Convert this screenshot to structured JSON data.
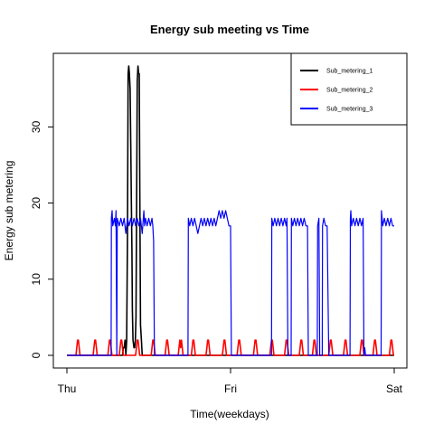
{
  "chart_data": {
    "type": "line",
    "title": "Energy sub meeting vs Time",
    "xlabel": "Time(weekdays)",
    "ylabel": "Energy sub metering",
    "x_unit": "day",
    "xlim": [
      0,
      2
    ],
    "ylim": [
      0,
      38
    ],
    "x_ticks": [
      {
        "value": 0,
        "label": "Thu"
      },
      {
        "value": 1,
        "label": "Fri"
      },
      {
        "value": 2,
        "label": "Sat"
      }
    ],
    "y_ticks": [
      0,
      10,
      20,
      30
    ],
    "grid": false,
    "legend_position": "top-right",
    "series": [
      {
        "name": "Sub_metering_1",
        "color": "#000000",
        "points": [
          [
            0,
            0
          ],
          [
            0.34,
            0
          ],
          [
            0.345,
            1
          ],
          [
            0.35,
            1
          ],
          [
            0.355,
            2
          ],
          [
            0.36,
            0
          ],
          [
            0.365,
            2
          ],
          [
            0.37,
            16
          ],
          [
            0.374,
            37
          ],
          [
            0.378,
            38
          ],
          [
            0.382,
            37
          ],
          [
            0.386,
            35
          ],
          [
            0.39,
            28
          ],
          [
            0.394,
            20
          ],
          [
            0.397,
            14
          ],
          [
            0.4,
            6
          ],
          [
            0.404,
            2
          ],
          [
            0.41,
            1
          ],
          [
            0.414,
            1
          ],
          [
            0.418,
            2
          ],
          [
            0.422,
            5
          ],
          [
            0.426,
            20
          ],
          [
            0.43,
            36
          ],
          [
            0.434,
            38
          ],
          [
            0.438,
            37
          ],
          [
            0.442,
            37
          ],
          [
            0.446,
            20
          ],
          [
            0.45,
            4
          ],
          [
            0.455,
            2
          ],
          [
            0.46,
            0
          ],
          [
            2,
            0
          ]
        ]
      },
      {
        "name": "Sub_metering_2",
        "color": "#ff0000",
        "points": [
          [
            0,
            0
          ],
          [
            0.055,
            0
          ],
          [
            0.06,
            1
          ],
          [
            0.065,
            2
          ],
          [
            0.07,
            2
          ],
          [
            0.075,
            1
          ],
          [
            0.08,
            0
          ],
          [
            0.16,
            0
          ],
          [
            0.165,
            1
          ],
          [
            0.17,
            2
          ],
          [
            0.175,
            2
          ],
          [
            0.18,
            1
          ],
          [
            0.185,
            0
          ],
          [
            0.25,
            0
          ],
          [
            0.255,
            1
          ],
          [
            0.26,
            2
          ],
          [
            0.265,
            2
          ],
          [
            0.27,
            1
          ],
          [
            0.275,
            0
          ],
          [
            0.32,
            0
          ],
          [
            0.325,
            1
          ],
          [
            0.33,
            2
          ],
          [
            0.335,
            2
          ],
          [
            0.34,
            1
          ],
          [
            0.345,
            0
          ],
          [
            0.42,
            0
          ],
          [
            0.425,
            1
          ],
          [
            0.43,
            2
          ],
          [
            0.435,
            2
          ],
          [
            0.44,
            1
          ],
          [
            0.445,
            0
          ],
          [
            0.515,
            0
          ],
          [
            0.52,
            1
          ],
          [
            0.525,
            2
          ],
          [
            0.53,
            2
          ],
          [
            0.535,
            1
          ],
          [
            0.54,
            0
          ],
          [
            0.6,
            0
          ],
          [
            0.605,
            1
          ],
          [
            0.61,
            2
          ],
          [
            0.615,
            2
          ],
          [
            0.62,
            1
          ],
          [
            0.625,
            0
          ],
          [
            0.68,
            0
          ],
          [
            0.685,
            1
          ],
          [
            0.69,
            2
          ],
          [
            0.695,
            1
          ],
          [
            0.7,
            2
          ],
          [
            0.705,
            1
          ],
          [
            0.71,
            0
          ],
          [
            0.76,
            0
          ],
          [
            0.765,
            1
          ],
          [
            0.77,
            2
          ],
          [
            0.775,
            2
          ],
          [
            0.78,
            1
          ],
          [
            0.785,
            0
          ],
          [
            0.85,
            0
          ],
          [
            0.855,
            1
          ],
          [
            0.86,
            2
          ],
          [
            0.865,
            2
          ],
          [
            0.87,
            1
          ],
          [
            0.875,
            0
          ],
          [
            0.95,
            0
          ],
          [
            0.955,
            1
          ],
          [
            0.96,
            2
          ],
          [
            0.965,
            2
          ],
          [
            0.97,
            1
          ],
          [
            0.975,
            0
          ],
          [
            1.04,
            0
          ],
          [
            1.045,
            1
          ],
          [
            1.05,
            2
          ],
          [
            1.055,
            2
          ],
          [
            1.06,
            1
          ],
          [
            1.065,
            0
          ],
          [
            1.14,
            0
          ],
          [
            1.145,
            1
          ],
          [
            1.15,
            2
          ],
          [
            1.155,
            2
          ],
          [
            1.16,
            1
          ],
          [
            1.165,
            0
          ],
          [
            1.24,
            0
          ],
          [
            1.245,
            1
          ],
          [
            1.25,
            2
          ],
          [
            1.255,
            2
          ],
          [
            1.26,
            1
          ],
          [
            1.265,
            0
          ],
          [
            1.33,
            0
          ],
          [
            1.335,
            1
          ],
          [
            1.34,
            2
          ],
          [
            1.345,
            2
          ],
          [
            1.35,
            1
          ],
          [
            1.355,
            0
          ],
          [
            1.42,
            0
          ],
          [
            1.425,
            1
          ],
          [
            1.43,
            2
          ],
          [
            1.435,
            2
          ],
          [
            1.44,
            1
          ],
          [
            1.445,
            0
          ],
          [
            1.5,
            0
          ],
          [
            1.505,
            1
          ],
          [
            1.51,
            2
          ],
          [
            1.515,
            2
          ],
          [
            1.52,
            1
          ],
          [
            1.525,
            0
          ],
          [
            1.6,
            0
          ],
          [
            1.605,
            1
          ],
          [
            1.61,
            2
          ],
          [
            1.615,
            2
          ],
          [
            1.62,
            1
          ],
          [
            1.625,
            0
          ],
          [
            1.69,
            0
          ],
          [
            1.695,
            1
          ],
          [
            1.7,
            2
          ],
          [
            1.705,
            2
          ],
          [
            1.71,
            1
          ],
          [
            1.715,
            0
          ],
          [
            1.79,
            0
          ],
          [
            1.795,
            1
          ],
          [
            1.8,
            2
          ],
          [
            1.805,
            2
          ],
          [
            1.81,
            1
          ],
          [
            1.815,
            0
          ],
          [
            1.87,
            0
          ],
          [
            1.875,
            1
          ],
          [
            1.88,
            2
          ],
          [
            1.885,
            2
          ],
          [
            1.89,
            1
          ],
          [
            1.895,
            0
          ],
          [
            1.97,
            0
          ],
          [
            1.975,
            1
          ],
          [
            1.98,
            2
          ],
          [
            1.985,
            2
          ],
          [
            1.99,
            1
          ],
          [
            1.995,
            0
          ],
          [
            2,
            0
          ]
        ]
      },
      {
        "name": "Sub_metering_3",
        "color": "#0000ff",
        "points": [
          [
            0,
            0
          ],
          [
            0.27,
            0
          ],
          [
            0.272,
            18
          ],
          [
            0.276,
            19
          ],
          [
            0.28,
            17
          ],
          [
            0.29,
            18
          ],
          [
            0.296,
            17
          ],
          [
            0.3,
            19
          ],
          [
            0.305,
            0
          ],
          [
            0.308,
            18
          ],
          [
            0.32,
            17
          ],
          [
            0.33,
            18
          ],
          [
            0.34,
            17
          ],
          [
            0.35,
            18
          ],
          [
            0.36,
            16
          ],
          [
            0.37,
            18
          ],
          [
            0.38,
            17
          ],
          [
            0.39,
            18
          ],
          [
            0.4,
            17
          ],
          [
            0.41,
            18
          ],
          [
            0.42,
            17
          ],
          [
            0.43,
            18
          ],
          [
            0.44,
            17
          ],
          [
            0.45,
            18
          ],
          [
            0.46,
            16
          ],
          [
            0.47,
            19
          ],
          [
            0.475,
            17
          ],
          [
            0.48,
            18
          ],
          [
            0.49,
            17
          ],
          [
            0.5,
            18
          ],
          [
            0.51,
            17
          ],
          [
            0.52,
            18
          ],
          [
            0.525,
            17
          ],
          [
            0.53,
            15
          ],
          [
            0.535,
            0
          ],
          [
            0.74,
            0
          ],
          [
            0.742,
            18
          ],
          [
            0.75,
            17
          ],
          [
            0.76,
            18
          ],
          [
            0.77,
            17
          ],
          [
            0.78,
            18
          ],
          [
            0.79,
            17
          ],
          [
            0.8,
            16
          ],
          [
            0.81,
            17
          ],
          [
            0.82,
            18
          ],
          [
            0.83,
            17
          ],
          [
            0.84,
            18
          ],
          [
            0.85,
            17
          ],
          [
            0.86,
            18
          ],
          [
            0.87,
            17
          ],
          [
            0.88,
            18
          ],
          [
            0.89,
            17
          ],
          [
            0.9,
            18
          ],
          [
            0.91,
            17
          ],
          [
            0.92,
            18
          ],
          [
            0.93,
            19
          ],
          [
            0.94,
            18
          ],
          [
            0.95,
            19
          ],
          [
            0.96,
            18
          ],
          [
            0.97,
            19
          ],
          [
            0.98,
            18
          ],
          [
            0.99,
            17
          ],
          [
            1.0,
            17
          ],
          [
            1.005,
            0
          ],
          [
            1.25,
            0
          ],
          [
            1.252,
            18
          ],
          [
            1.26,
            17
          ],
          [
            1.27,
            18
          ],
          [
            1.28,
            17
          ],
          [
            1.29,
            18
          ],
          [
            1.3,
            17
          ],
          [
            1.31,
            18
          ],
          [
            1.32,
            17
          ],
          [
            1.33,
            18
          ],
          [
            1.34,
            17
          ],
          [
            1.345,
            18
          ],
          [
            1.35,
            0
          ],
          [
            1.37,
            0
          ],
          [
            1.372,
            18
          ],
          [
            1.38,
            17
          ],
          [
            1.39,
            18
          ],
          [
            1.4,
            17
          ],
          [
            1.41,
            18
          ],
          [
            1.42,
            17
          ],
          [
            1.43,
            18
          ],
          [
            1.44,
            17
          ],
          [
            1.45,
            18
          ],
          [
            1.46,
            17
          ],
          [
            1.47,
            17
          ],
          [
            1.475,
            0
          ],
          [
            1.53,
            0
          ],
          [
            1.532,
            17
          ],
          [
            1.54,
            18
          ],
          [
            1.545,
            0
          ],
          [
            1.56,
            0
          ],
          [
            1.562,
            17
          ],
          [
            1.57,
            18
          ],
          [
            1.58,
            17
          ],
          [
            1.59,
            17
          ],
          [
            1.6,
            0
          ],
          [
            1.73,
            0
          ],
          [
            1.732,
            18
          ],
          [
            1.735,
            19
          ],
          [
            1.74,
            17
          ],
          [
            1.75,
            18
          ],
          [
            1.76,
            17
          ],
          [
            1.77,
            18
          ],
          [
            1.78,
            17
          ],
          [
            1.79,
            18
          ],
          [
            1.8,
            17
          ],
          [
            1.81,
            18
          ],
          [
            1.815,
            0
          ],
          [
            1.82,
            1
          ],
          [
            1.825,
            0
          ],
          [
            1.92,
            0
          ],
          [
            1.922,
            19
          ],
          [
            1.93,
            17
          ],
          [
            1.94,
            18
          ],
          [
            1.95,
            17
          ],
          [
            1.96,
            18
          ],
          [
            1.97,
            17
          ],
          [
            1.98,
            18
          ],
          [
            1.99,
            17
          ],
          [
            2,
            17
          ]
        ]
      }
    ]
  }
}
